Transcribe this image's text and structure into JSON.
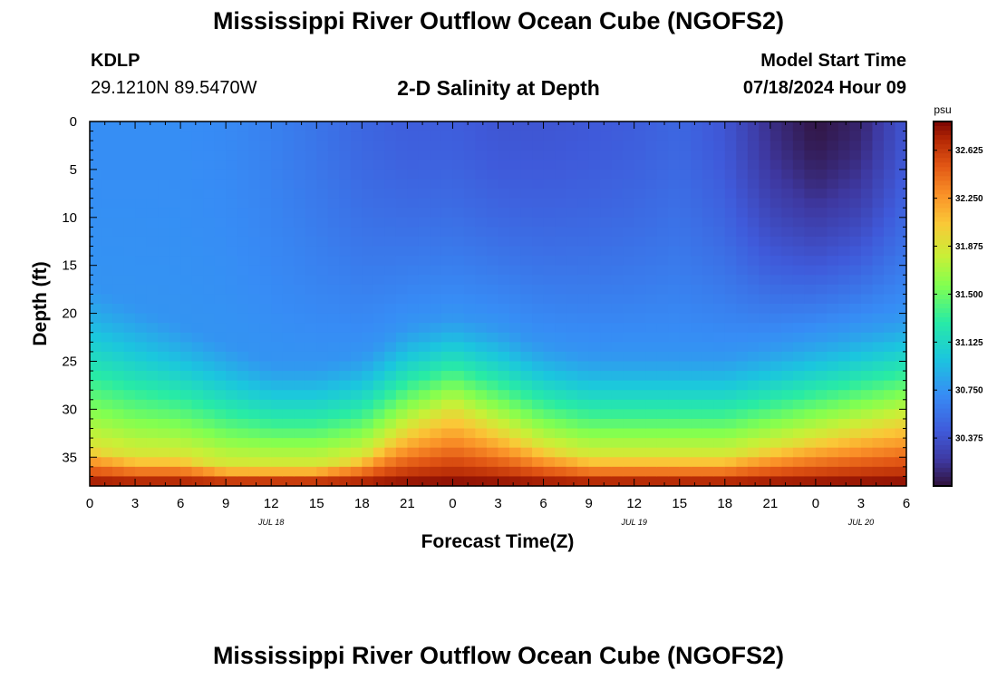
{
  "header": {
    "title": "Mississippi River Outflow Ocean Cube (NGOFS2)",
    "station_id": "KDLP",
    "station_coords": "29.1210N  89.5470W",
    "subtitle": "2-D Salinity at Depth",
    "model_start_label": "Model Start Time",
    "model_start_value": "07/18/2024 Hour 09"
  },
  "footer": {
    "title": "Mississippi River Outflow Ocean Cube (NGOFS2)"
  },
  "chart_data": {
    "type": "heatmap",
    "title": "2-D Salinity at Depth",
    "xlabel": "Forecast Time(Z)",
    "ylabel": "Depth (ft)",
    "x_ticks": [
      "0",
      "3",
      "6",
      "9",
      "12",
      "15",
      "18",
      "21",
      "0",
      "3",
      "6",
      "9",
      "12",
      "15",
      "18",
      "21",
      "0",
      "3",
      "6"
    ],
    "x_range_hours": [
      0,
      54
    ],
    "date_labels": [
      {
        "text": "JUL 18",
        "hour": 12
      },
      {
        "text": "JUL 19",
        "hour": 36
      },
      {
        "text": "JUL 20",
        "hour": 51
      }
    ],
    "y_ticks": [
      0,
      5,
      10,
      15,
      20,
      25,
      30,
      35
    ],
    "ylim": [
      0,
      38
    ],
    "y_inverted": true,
    "colorbar": {
      "unit": "psu",
      "ticks": [
        "30.375",
        "30.750",
        "31.125",
        "31.500",
        "31.875",
        "32.250",
        "32.625"
      ],
      "range": [
        30.0,
        32.85
      ],
      "colormap": "turbo"
    },
    "salinity_profile": [
      {
        "hour": 0,
        "surface": 30.72,
        "top_depth": 17,
        "bottom_depth": 34
      },
      {
        "hour": 3,
        "surface": 30.72,
        "top_depth": 19,
        "bottom_depth": 35
      },
      {
        "hour": 6,
        "surface": 30.72,
        "top_depth": 21,
        "bottom_depth": 35
      },
      {
        "hour": 9,
        "surface": 30.7,
        "top_depth": 23,
        "bottom_depth": 36
      },
      {
        "hour": 12,
        "surface": 30.65,
        "top_depth": 25,
        "bottom_depth": 36
      },
      {
        "hour": 15,
        "surface": 30.58,
        "top_depth": 25,
        "bottom_depth": 36
      },
      {
        "hour": 18,
        "surface": 30.5,
        "top_depth": 24,
        "bottom_depth": 35
      },
      {
        "hour": 21,
        "surface": 30.45,
        "top_depth": 21,
        "bottom_depth": 32
      },
      {
        "hour": 24,
        "surface": 30.45,
        "top_depth": 20,
        "bottom_depth": 30
      },
      {
        "hour": 27,
        "surface": 30.4,
        "top_depth": 21,
        "bottom_depth": 32
      },
      {
        "hour": 30,
        "surface": 30.4,
        "top_depth": 23,
        "bottom_depth": 34
      },
      {
        "hour": 33,
        "surface": 30.42,
        "top_depth": 24,
        "bottom_depth": 35
      },
      {
        "hour": 36,
        "surface": 30.45,
        "top_depth": 24,
        "bottom_depth": 35
      },
      {
        "hour": 39,
        "surface": 30.5,
        "top_depth": 24,
        "bottom_depth": 35
      },
      {
        "hour": 42,
        "surface": 30.4,
        "top_depth": 24,
        "bottom_depth": 35
      },
      {
        "hour": 45,
        "surface": 30.15,
        "top_depth": 23,
        "bottom_depth": 34
      },
      {
        "hour": 48,
        "surface": 30.02,
        "top_depth": 22,
        "bottom_depth": 33
      },
      {
        "hour": 51,
        "surface": 30.1,
        "top_depth": 21,
        "bottom_depth": 32
      },
      {
        "hour": 54,
        "surface": 30.4,
        "top_depth": 20,
        "bottom_depth": 31
      }
    ],
    "bottom_salinity": 32.85,
    "mid_column_salinity": 30.75
  }
}
